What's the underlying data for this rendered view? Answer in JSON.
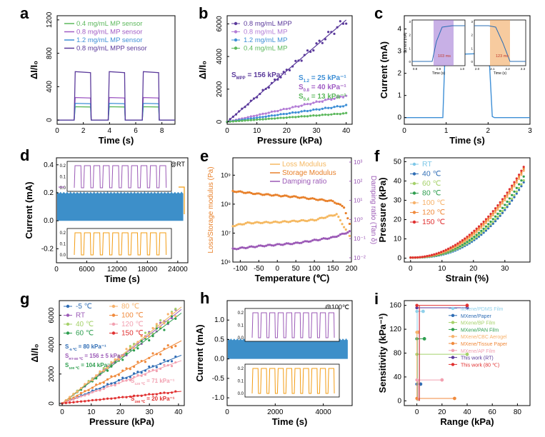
{
  "chart_data": [
    {
      "panel": "a",
      "type": "line",
      "xlabel": "Time (s)",
      "ylabel": "ΔI/I₀",
      "xlim": [
        0,
        9
      ],
      "ylim": [
        -50,
        1250
      ],
      "xticks": [
        0,
        2,
        4,
        6,
        8
      ],
      "yticks": [
        0,
        400,
        800,
        1200
      ],
      "legend": "top-left",
      "cycles": [
        [
          1.3,
          2.6
        ],
        [
          3.9,
          5.2
        ],
        [
          6.5,
          7.8
        ]
      ],
      "series": [
        {
          "name": "0.4 mg/mL MP sensor",
          "color": "#5cb85c",
          "level": 160
        },
        {
          "name": "0.8 mg/mL MP sensor",
          "color": "#a05cc4",
          "level": 270
        },
        {
          "name": "1.2 mg/mL MP sensor",
          "color": "#3e8fd6",
          "level": 200
        },
        {
          "name": "0.8 mg/mL MPP sensor",
          "color": "#5b3a9b",
          "level": 580
        }
      ]
    },
    {
      "panel": "b",
      "type": "scatter",
      "xlabel": "Pressure (kPa)",
      "ylabel": "ΔI/I₀",
      "xlim": [
        0,
        42
      ],
      "ylim": [
        -150,
        6500
      ],
      "xticks": [
        0,
        10,
        20,
        30,
        40
      ],
      "yticks": [
        0,
        2000,
        4000,
        6000
      ],
      "legend": "top-left",
      "series": [
        {
          "name": "0.8 mg/mL MPP",
          "color": "#5b3a9b",
          "slope": 156
        },
        {
          "name": "0.8 mg/mL MP",
          "color": "#b37cd6",
          "slope": 40
        },
        {
          "name": "1.2 mg/mL MP",
          "color": "#3e8fd6",
          "slope": 25
        },
        {
          "name": "0.4 mg/mL MP",
          "color": "#5cb85c",
          "slope": 13
        }
      ],
      "annotations": [
        {
          "text": "S",
          "sub": "MPP",
          "rest": " = 156 kPa⁻¹",
          "color": "#5b3a9b"
        },
        {
          "text": "S",
          "sub": "1.2",
          "rest": " = 25 kPa⁻¹",
          "color": "#3e8fd6"
        },
        {
          "text": "S",
          "sub": "0.8",
          "rest": " = 40 kPa⁻¹",
          "color": "#a05cc4"
        },
        {
          "text": "S",
          "sub": "0.4",
          "rest": " = 13 kPa⁻¹",
          "color": "#5cb85c"
        }
      ]
    },
    {
      "panel": "c",
      "type": "line",
      "xlabel": "Time (s)",
      "ylabel": "Current (mA)",
      "xlim": [
        0,
        3
      ],
      "ylim": [
        -0.3,
        4.6
      ],
      "xticks": [
        0,
        1,
        2,
        3
      ],
      "yticks": [
        0,
        1,
        2,
        3,
        4
      ],
      "points": [
        [
          0,
          0
        ],
        [
          0.92,
          0
        ],
        [
          0.97,
          2.75
        ],
        [
          1.1,
          2.85
        ],
        [
          2.02,
          2.9
        ],
        [
          2.1,
          0.05
        ],
        [
          2.15,
          0
        ],
        [
          3,
          0
        ]
      ],
      "insets": [
        {
          "xlabel": "Time (s)",
          "ylabel": "Current (mA)",
          "xticks": [
            "0.8",
            "0.9",
            "1.0"
          ],
          "yticks": [
            "0",
            "1",
            "2",
            "3"
          ],
          "label": "103 ms",
          "color": "#9b6fd1"
        },
        {
          "xlabel": "Time (s)",
          "ylabel": "",
          "xticks": [
            "2.0",
            "2.1",
            "2.2",
            "2.3"
          ],
          "yticks": [
            "0",
            "1",
            "2",
            "3"
          ],
          "label": "123 ms",
          "color": "#f0a050"
        }
      ]
    },
    {
      "panel": "d",
      "type": "area",
      "xlabel": "Time (s)",
      "ylabel": "Current (mA)",
      "note": "@RT",
      "xlim": [
        0,
        26000
      ],
      "ylim": [
        -0.3,
        0.45
      ],
      "xticks": [
        0,
        6000,
        12000,
        18000,
        24000
      ],
      "yticks": [
        -0.2,
        0.0,
        0.2,
        0.4
      ],
      "band": {
        "min": 0.0,
        "max": 0.2,
        "color": "#3d8fc9"
      },
      "insets": [
        {
          "yticks": [
            "0.0",
            "0.1",
            "0.2"
          ],
          "color": "#9b59b6"
        },
        {
          "yticks": [
            "0.0",
            "0.1",
            "0.2"
          ],
          "color": "#f39c12"
        }
      ]
    },
    {
      "panel": "e",
      "type": "line",
      "xlabel": "Temperature (℃)",
      "ylabel": "Loss/Storage modulus (Pa)",
      "ylabel2": "Damping ratio (Tan δ)",
      "xlim": [
        -120,
        200
      ],
      "xticks": [
        -100,
        -50,
        0,
        50,
        100,
        150,
        200
      ],
      "yticks_left": [
        "10⁶",
        "10⁷",
        "10⁸",
        "10⁹"
      ],
      "yticks_right": [
        "10⁻²",
        "10⁻¹",
        "10⁰",
        "10¹",
        "10²",
        "10³"
      ],
      "legend": "top-right",
      "series": [
        {
          "name": "Loss Modulus",
          "color": "#f5b860",
          "log_values": [
            [
              -120,
              7.25
            ],
            [
              -80,
              7.35
            ],
            [
              0,
              7.38
            ],
            [
              100,
              7.45
            ],
            [
              160,
              7.65
            ],
            [
              195,
              6.9
            ]
          ]
        },
        {
          "name": "Storage Modulus",
          "color": "#e8802a",
          "log_values": [
            [
              -120,
              8.45
            ],
            [
              -50,
              8.35
            ],
            [
              50,
              8.25
            ],
            [
              150,
              8.1
            ],
            [
              180,
              7.9
            ],
            [
              195,
              7.3
            ]
          ]
        },
        {
          "name": "Damping ratio",
          "color": "#9b59b6",
          "log_values": [
            [
              -120,
              6.45
            ],
            [
              -50,
              6.55
            ],
            [
              50,
              6.65
            ],
            [
              150,
              6.85
            ],
            [
              195,
              7.05
            ]
          ]
        }
      ]
    },
    {
      "panel": "f",
      "type": "scatter",
      "xlabel": "Strain (%)",
      "ylabel": "Pressure (kPa)",
      "xlim": [
        -2,
        38
      ],
      "ylim": [
        -2,
        52
      ],
      "xticks": [
        0,
        10,
        20,
        30
      ],
      "yticks": [
        0,
        10,
        20,
        30,
        40,
        50
      ],
      "legend": "top-left",
      "series": [
        {
          "name": "RT",
          "color": "#7fc8e8",
          "end": 40
        },
        {
          "name": "40 ℃",
          "color": "#2f6db5",
          "end": 39
        },
        {
          "name": "60 ℃",
          "color": "#a5d16a",
          "end": 40
        },
        {
          "name": "80 ℃",
          "color": "#2e9e4f",
          "end": 42
        },
        {
          "name": "100 ℃",
          "color": "#f7b26b",
          "end": 45
        },
        {
          "name": "120 ℃",
          "color": "#f08a3c",
          "end": 46
        },
        {
          "name": "150 ℃",
          "color": "#e03030",
          "end": 47
        }
      ]
    },
    {
      "panel": "g",
      "type": "scatter",
      "xlabel": "Pressure (kPa)",
      "ylabel": "ΔI/I₀",
      "xlim": [
        -1,
        42
      ],
      "ylim": [
        -150,
        7000
      ],
      "xticks": [
        0,
        10,
        20,
        30,
        40
      ],
      "yticks": [
        0,
        2000,
        4000,
        6000
      ],
      "legend": "top-left",
      "series": [
        {
          "name": "-5 ℃",
          "color": "#2f6db5",
          "slope": 80
        },
        {
          "name": "RT",
          "color": "#9b59b6",
          "slope": 156
        },
        {
          "name": "40 ℃",
          "color": "#a5d16a",
          "slope": 160
        },
        {
          "name": "60 ℃",
          "color": "#2e9e4f",
          "slope": 150
        },
        {
          "name": "80 ℃",
          "color": "#f7b26b",
          "slope": 160
        },
        {
          "name": "100 ℃",
          "color": "#f08a3c",
          "slope": 104
        },
        {
          "name": "120 ℃",
          "color": "#f2a0b0",
          "slope": 71
        },
        {
          "name": "150 ℃",
          "color": "#e03030",
          "slope": 20
        }
      ],
      "annotations": [
        {
          "text": "S",
          "sub": "-5 ℃",
          "rest": " = 80 kPa⁻¹",
          "color": "#2f6db5"
        },
        {
          "text": "S",
          "sub": "RT-80 ℃",
          "rest": " = 156 ± 5 kPa⁻¹",
          "color": "#9b59b6"
        },
        {
          "text": "S",
          "sub": "100 ℃",
          "rest": " = 104 kPa⁻¹",
          "color": "#2e9e4f"
        },
        {
          "text": "S",
          "sub": "120 ℃",
          "rest": " = 71 kPa⁻¹",
          "color": "#f2a0b0"
        },
        {
          "text": "S",
          "sub": "150 ℃",
          "rest": " = 20 kPa⁻¹",
          "color": "#e03030"
        }
      ]
    },
    {
      "panel": "h",
      "type": "area",
      "xlabel": "Time (s)",
      "ylabel": "Current (mA)",
      "note": "@100℃",
      "xlim": [
        0,
        5200
      ],
      "ylim": [
        -1.2,
        1.5
      ],
      "xticks": [
        0,
        2000,
        4000
      ],
      "yticks": [
        -1.0,
        -0.5,
        0.0,
        0.5,
        1.0
      ],
      "band": {
        "min": 0.0,
        "max": 0.5,
        "color": "#3d8fc9"
      },
      "insets": [
        {
          "yticks": [
            "0.0",
            "0.1",
            "0.2"
          ],
          "color": "#9b59b6"
        },
        {
          "yticks": [
            "0.0",
            "0.1",
            "0.2"
          ],
          "color": "#f39c12"
        }
      ]
    },
    {
      "panel": "i",
      "type": "scatter",
      "xlabel": "Range (kPa)",
      "ylabel": "Sensitivity (kPa⁻¹)",
      "xlim": [
        -10,
        90
      ],
      "ylim": [
        -8,
        168
      ],
      "xticks": [
        0,
        20,
        40,
        60,
        80
      ],
      "yticks": [
        0,
        40,
        80,
        120,
        160
      ],
      "legend": "top-right",
      "series": [
        {
          "name": "MXene/PDMS Film",
          "color": "#8fd0ea",
          "x": 5,
          "y": 150
        },
        {
          "name": "MXene/Paper",
          "color": "#2f6db5",
          "x": 3,
          "y": 28
        },
        {
          "name": "MXene/BP Film",
          "color": "#a5d16a",
          "x": 40,
          "y": 78
        },
        {
          "name": "MXene/PAN Film",
          "color": "#2e9e4f",
          "x": 6,
          "y": 104
        },
        {
          "name": "MXene/CBC Aerogel",
          "color": "#f7b26b",
          "x": 1,
          "y": 115
        },
        {
          "name": "MXene/Tissue Paper",
          "color": "#f08a3c",
          "x": 30,
          "y": 4
        },
        {
          "name": "MXene/AP Film",
          "color": "#f2a0b0",
          "x": 20,
          "y": 35
        },
        {
          "name": "This work (RT)",
          "color": "#5b3a9b",
          "x": 40,
          "y": 156
        },
        {
          "name": "This work (80 ℃)",
          "color": "#e03030",
          "x": 40,
          "y": 160
        }
      ]
    }
  ]
}
